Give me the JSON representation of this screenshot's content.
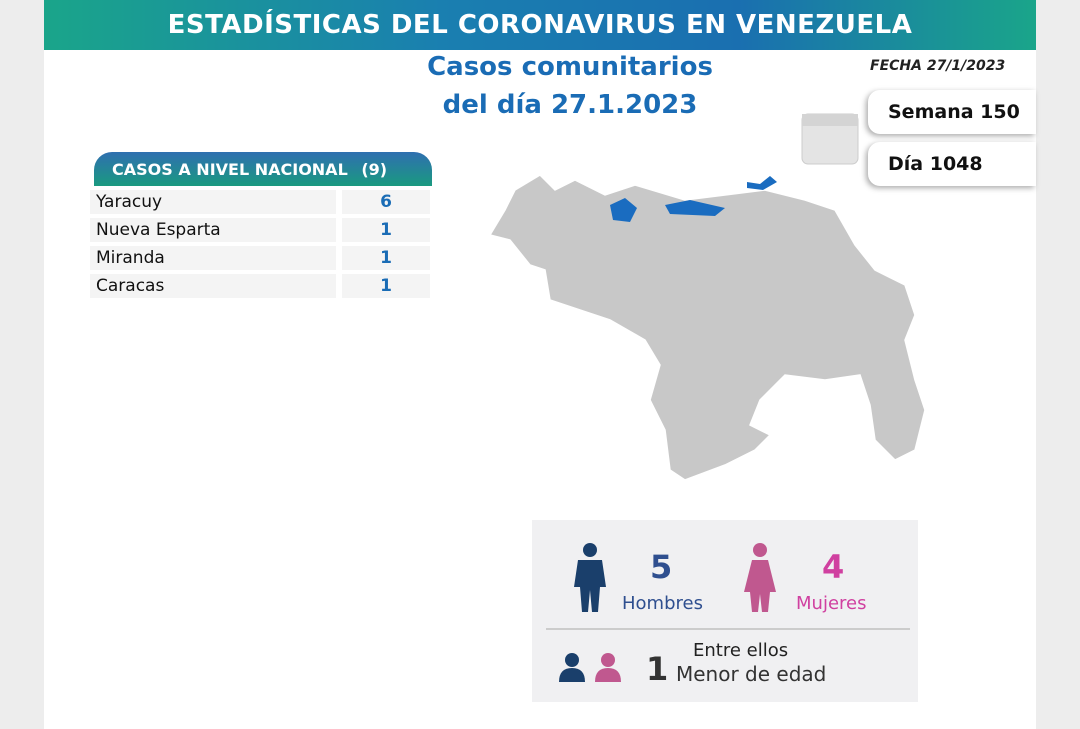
{
  "header": {
    "title": "ESTADÍSTICAS DEL CORONAVIRUS EN VENEZUELA",
    "date": "FECHA 27/1/2023"
  },
  "subtitle": [
    "Casos comunitarios",
    "del día 27.1.2023"
  ],
  "week": "Semana 150",
  "day": "Día 1048",
  "table": {
    "title": "CASOS A NIVEL NACIONAL",
    "total": "(9)",
    "rows": [
      [
        "Yaracuy",
        "6"
      ],
      [
        "Nueva Esparta",
        "1"
      ],
      [
        "Miranda",
        "1"
      ],
      [
        "Caracas",
        "1"
      ]
    ]
  },
  "gender": {
    "men": {
      "count": "5",
      "label": "Hombres"
    },
    "women": {
      "count": "4",
      "label": "Mujeres"
    },
    "minors_intro": "Entre ellos",
    "minors": {
      "count": "1",
      "label": "Menor de edad"
    }
  }
}
